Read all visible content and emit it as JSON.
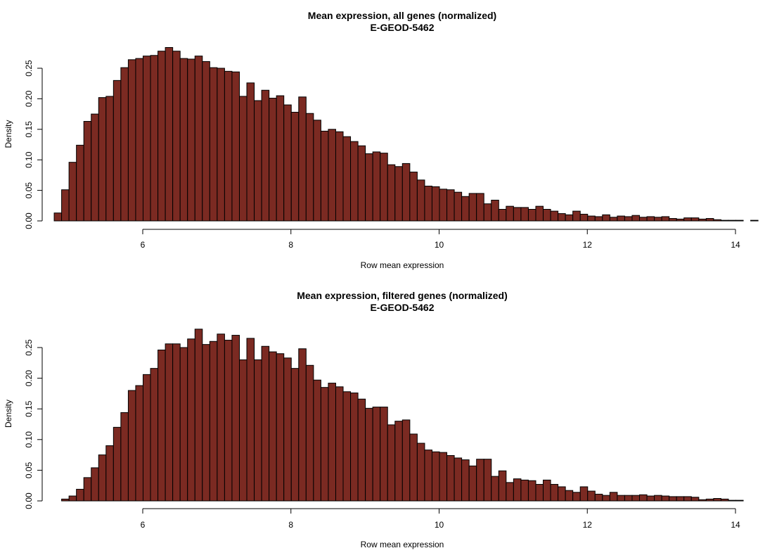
{
  "colors": {
    "bar_fill": "#7b2a22",
    "bar_stroke": "#000000"
  },
  "chart_data": [
    {
      "type": "bar",
      "title": "Mean expression, all genes (normalized)",
      "subtitle": "E-GEOD-5462",
      "xlabel": "Row mean expression",
      "ylabel": "Density",
      "grid": false,
      "xlim": [
        4.8,
        14.3
      ],
      "ylim": [
        0,
        0.25
      ],
      "x_ticks": [
        "6",
        "8",
        "10",
        "12",
        "14"
      ],
      "y_ticks": [
        "0.00",
        "0.05",
        "0.10",
        "0.15",
        "0.20",
        "0.25"
      ],
      "bin_width": 0.1,
      "x_start": 4.8,
      "values": [
        0.013,
        0.051,
        0.096,
        0.124,
        0.163,
        0.175,
        0.202,
        0.204,
        0.23,
        0.251,
        0.264,
        0.266,
        0.27,
        0.271,
        0.278,
        0.284,
        0.278,
        0.266,
        0.265,
        0.27,
        0.261,
        0.251,
        0.25,
        0.245,
        0.244,
        0.204,
        0.226,
        0.197,
        0.214,
        0.201,
        0.205,
        0.19,
        0.178,
        0.203,
        0.176,
        0.165,
        0.147,
        0.15,
        0.146,
        0.138,
        0.13,
        0.123,
        0.11,
        0.113,
        0.111,
        0.092,
        0.089,
        0.094,
        0.08,
        0.067,
        0.057,
        0.056,
        0.052,
        0.051,
        0.047,
        0.04,
        0.045,
        0.045,
        0.028,
        0.034,
        0.019,
        0.024,
        0.022,
        0.022,
        0.019,
        0.024,
        0.019,
        0.016,
        0.012,
        0.01,
        0.016,
        0.011,
        0.008,
        0.007,
        0.01,
        0.006,
        0.008,
        0.007,
        0.009,
        0.006,
        0.007,
        0.006,
        0.007,
        0.004,
        0.003,
        0.005,
        0.005,
        0.003,
        0.004,
        0.002,
        0.001,
        0.001,
        0.001,
        0.0,
        0.001
      ]
    },
    {
      "type": "bar",
      "title": "Mean expression, filtered genes (normalized)",
      "subtitle": "E-GEOD-5462",
      "xlabel": "Row mean expression",
      "ylabel": "Density",
      "grid": false,
      "xlim": [
        4.9,
        13.8
      ],
      "ylim": [
        0,
        0.25
      ],
      "x_ticks": [
        "6",
        "8",
        "10",
        "12",
        "14"
      ],
      "y_ticks": [
        "0.00",
        "0.05",
        "0.10",
        "0.15",
        "0.20",
        "0.25"
      ],
      "bin_width": 0.1,
      "x_start": 4.9,
      "values": [
        0.003,
        0.008,
        0.019,
        0.038,
        0.054,
        0.075,
        0.09,
        0.12,
        0.144,
        0.18,
        0.188,
        0.206,
        0.216,
        0.246,
        0.256,
        0.256,
        0.25,
        0.264,
        0.28,
        0.255,
        0.26,
        0.272,
        0.262,
        0.27,
        0.23,
        0.265,
        0.23,
        0.252,
        0.243,
        0.24,
        0.233,
        0.216,
        0.248,
        0.221,
        0.197,
        0.185,
        0.192,
        0.186,
        0.178,
        0.176,
        0.166,
        0.151,
        0.153,
        0.153,
        0.124,
        0.13,
        0.132,
        0.109,
        0.094,
        0.083,
        0.08,
        0.079,
        0.074,
        0.07,
        0.067,
        0.057,
        0.068,
        0.068,
        0.04,
        0.049,
        0.03,
        0.036,
        0.034,
        0.033,
        0.027,
        0.034,
        0.027,
        0.023,
        0.017,
        0.014,
        0.023,
        0.016,
        0.011,
        0.009,
        0.014,
        0.009,
        0.009,
        0.009,
        0.01,
        0.008,
        0.009,
        0.008,
        0.007,
        0.007,
        0.007,
        0.006,
        0.002,
        0.003,
        0.004,
        0.003,
        0.001,
        0.001
      ]
    }
  ]
}
